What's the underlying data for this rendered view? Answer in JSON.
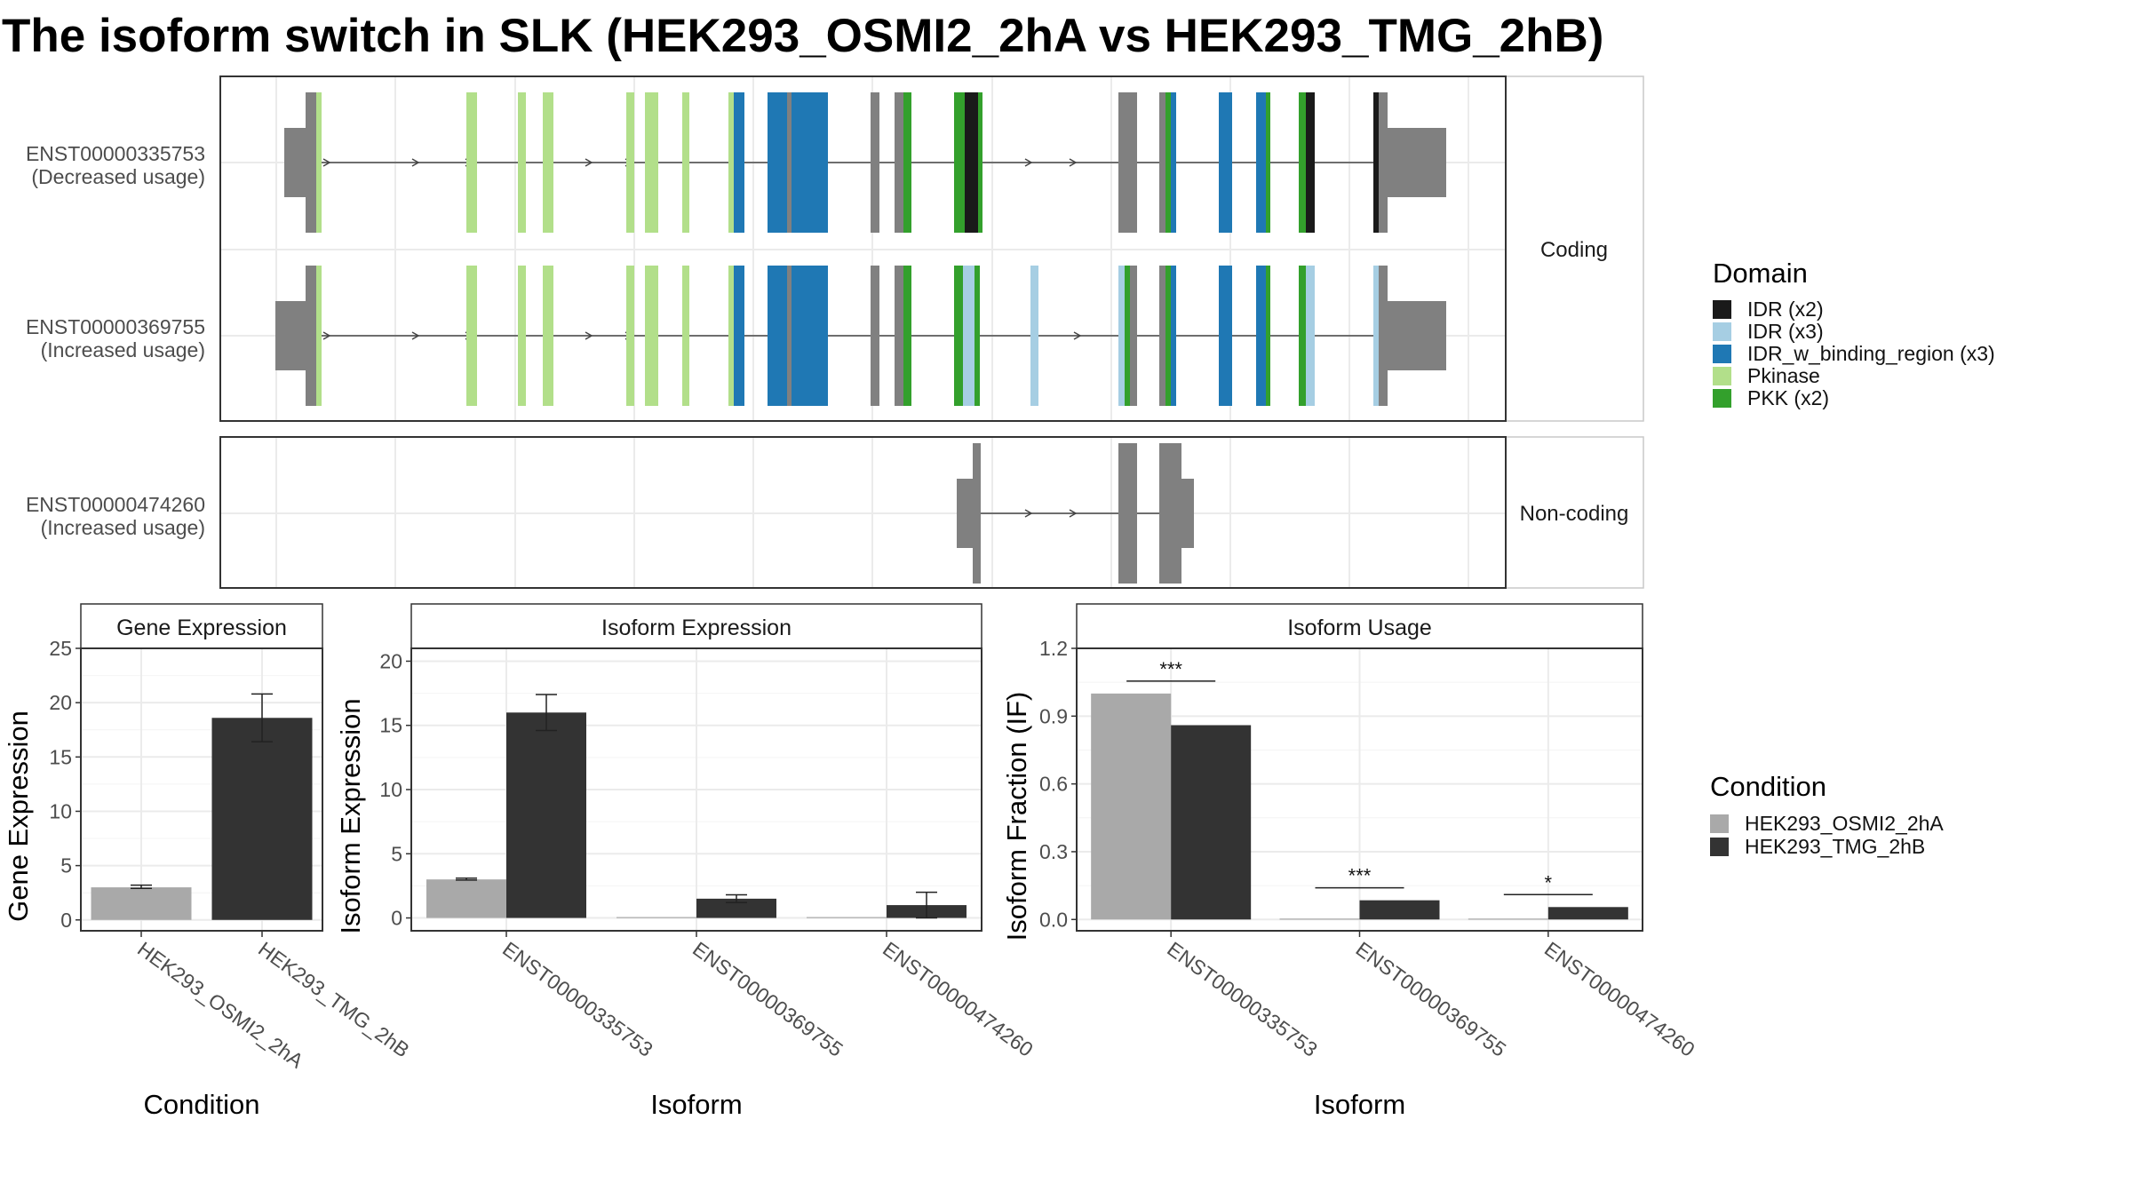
{
  "title": "The isoform switch in SLK (HEK293_OSMI2_2hA vs HEK293_TMG_2hB)",
  "colors": {
    "IDR (x2)": "#1a1a1a",
    "IDR (x3)": "#a6cee3",
    "IDR_w_binding_region (x3)": "#1f78b4",
    "Pkinase": "#b2df8a",
    "PKK (x2)": "#33a02c",
    "exon": "#808080",
    "HEK293_OSMI2_2hA": "#a9a9a9",
    "HEK293_TMG_2hB": "#333333"
  },
  "structure": {
    "coding_strip": "Coding",
    "noncoding_strip": "Non-coding",
    "isoforms": [
      {
        "id": "ENST00000335753",
        "usage": "(Decreased usage)",
        "group": "Coding"
      },
      {
        "id": "ENST00000369755",
        "usage": "(Increased usage)",
        "group": "Coding"
      },
      {
        "id": "ENST00000474260",
        "usage": "(Increased usage)",
        "group": "Non-coding"
      }
    ]
  },
  "legend_domain": {
    "title": "Domain",
    "items": [
      "IDR (x2)",
      "IDR (x3)",
      "IDR_w_binding_region (x3)",
      "Pkinase",
      "PKK (x2)"
    ]
  },
  "legend_condition": {
    "title": "Condition",
    "items": [
      "HEK293_OSMI2_2hA",
      "HEK293_TMG_2hB"
    ]
  },
  "chart_data": [
    {
      "type": "bar",
      "title": "Gene Expression",
      "xlabel": "Condition",
      "ylabel": "Gene Expression",
      "ylim": [
        -1,
        25
      ],
      "yticks": [
        0,
        5,
        10,
        15,
        20,
        25
      ],
      "categories": [
        "HEK293_OSMI2_2hA",
        "HEK293_TMG_2hB"
      ],
      "values": [
        3.0,
        18.6
      ],
      "errors": [
        [
          2.9,
          3.2
        ],
        [
          16.4,
          20.8
        ]
      ]
    },
    {
      "type": "bar",
      "title": "Isoform Expression",
      "xlabel": "Isoform",
      "ylabel": "Isoform Expression",
      "ylim": [
        -1,
        21
      ],
      "yticks": [
        0,
        5,
        10,
        15,
        20
      ],
      "categories": [
        "ENST00000335753",
        "ENST00000369755",
        "ENST00000474260"
      ],
      "series": [
        {
          "name": "HEK293_OSMI2_2hA",
          "values": [
            3.0,
            0.0,
            0.0
          ],
          "errors": [
            [
              2.95,
              3.1
            ],
            null,
            null
          ]
        },
        {
          "name": "HEK293_TMG_2hB",
          "values": [
            16.0,
            1.5,
            1.0
          ],
          "errors": [
            [
              14.6,
              17.4
            ],
            [
              1.2,
              1.8
            ],
            [
              0.0,
              2.0
            ]
          ]
        }
      ]
    },
    {
      "type": "bar",
      "title": "Isoform Usage",
      "xlabel": "Isoform",
      "ylabel": "Isoform Fraction (IF)",
      "ylim": [
        -0.05,
        1.2
      ],
      "yticks": [
        "0.0",
        "0.3",
        "0.6",
        "0.9",
        "1.2"
      ],
      "categories": [
        "ENST00000335753",
        "ENST00000369755",
        "ENST00000474260"
      ],
      "series": [
        {
          "name": "HEK293_OSMI2_2hA",
          "values": [
            1.0,
            0.0,
            0.0
          ]
        },
        {
          "name": "HEK293_TMG_2hB",
          "values": [
            0.86,
            0.085,
            0.055
          ]
        }
      ],
      "significance": [
        "***",
        "***",
        "*"
      ]
    }
  ]
}
